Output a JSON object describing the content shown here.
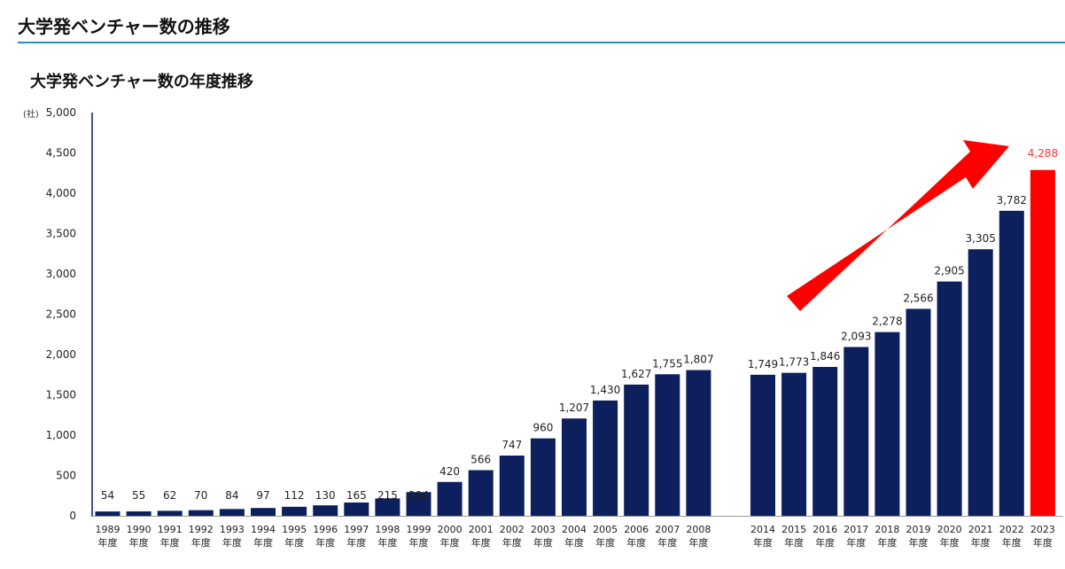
{
  "header": {
    "title": "大学発ベンチャー数の推移"
  },
  "chart_data": {
    "type": "bar",
    "title": "大学発ベンチャー数の年度推移",
    "unit_label": "(社)",
    "ylim": [
      0,
      5000
    ],
    "yticks": [
      "0",
      "500",
      "1,000",
      "1,500",
      "2,000",
      "2,500",
      "3,000",
      "3,500",
      "4,000",
      "4,500",
      "5,000"
    ],
    "x_unit": "年度",
    "categories": [
      "1989",
      "1990",
      "1991",
      "1992",
      "1993",
      "1994",
      "1995",
      "1996",
      "1997",
      "1998",
      "1999",
      "2000",
      "2001",
      "2002",
      "2003",
      "2004",
      "2005",
      "2006",
      "2007",
      "2008",
      "2014",
      "2015",
      "2016",
      "2017",
      "2018",
      "2019",
      "2020",
      "2021",
      "2022",
      "2023"
    ],
    "values": [
      54,
      55,
      62,
      70,
      84,
      97,
      112,
      130,
      165,
      215,
      294,
      420,
      566,
      747,
      960,
      1207,
      1430,
      1627,
      1755,
      1807,
      1749,
      1773,
      1846,
      2093,
      2278,
      2566,
      2905,
      3305,
      3782,
      4288
    ],
    "value_labels": [
      "54",
      "55",
      "62",
      "70",
      "84",
      "97",
      "112",
      "130",
      "165",
      "215",
      "294",
      "420",
      "566",
      "747",
      "960",
      "1,207",
      "1,430",
      "1,627",
      "1,755",
      "1,807",
      "1,749",
      "1,773",
      "1,846",
      "2,093",
      "2,278",
      "2,566",
      "2,905",
      "3,305",
      "3,782",
      "4,288"
    ],
    "highlight_category": "2023",
    "colors": {
      "bar": "#0d1f5c",
      "highlight": "#ff0000",
      "highlight_label": "#ff3333",
      "arrow": "#ff0000"
    },
    "annotations": [
      "red upward trend arrow from 2014 to 2023"
    ]
  }
}
